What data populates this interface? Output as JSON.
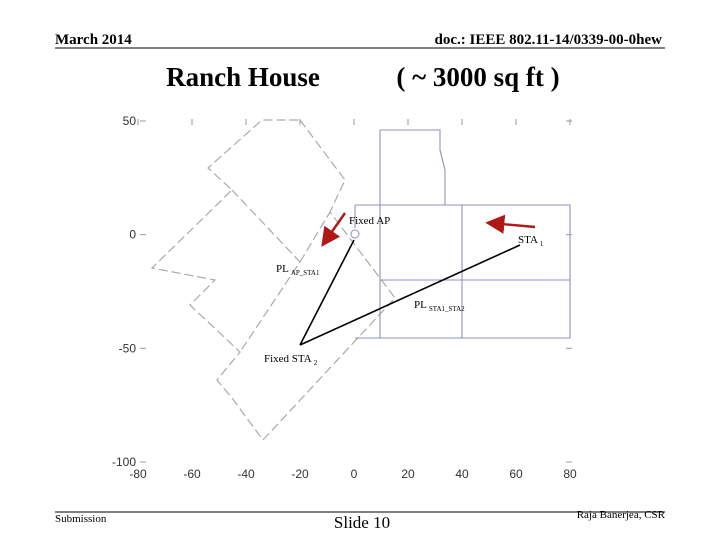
{
  "header": {
    "date": "March 2014",
    "doc": "doc.: IEEE 802.11-14/0339-00-0hew"
  },
  "title": {
    "left": "Ranch House",
    "right": "( ~ 3000 sq ft )"
  },
  "plot": {
    "xticks": [
      -80,
      -60,
      -40,
      -20,
      0,
      20,
      40,
      60,
      80
    ],
    "yticks": [
      50,
      0,
      -50,
      -100
    ],
    "annotations": [
      {
        "text": "Fixed AP"
      },
      {
        "text": "STA",
        "sub": "1"
      },
      {
        "text": "PL",
        "sub": "AP_STA1"
      },
      {
        "text": "PL",
        "sub": "STA1_STA2"
      },
      {
        "text": "Fixed STA",
        "sub": "2"
      }
    ]
  },
  "footer": {
    "left": "Submission",
    "center": "Slide 10",
    "right": "Raja Banerjea, CSR"
  }
}
